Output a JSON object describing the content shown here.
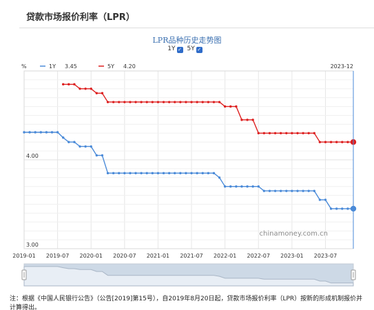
{
  "page_title": "贷款市场报价利率（LPR）",
  "chart_data": {
    "type": "line",
    "title": "LPR品种历史走势图",
    "toggles": [
      {
        "label": "1Y",
        "checked": true
      },
      {
        "label": "5Y",
        "checked": true
      }
    ],
    "ylabel": "%",
    "ylim": [
      3.0,
      5.0
    ],
    "y_tick_labels": [
      {
        "value": 4.0,
        "label": "4.00"
      },
      {
        "value": 3.0,
        "label": "3.00"
      }
    ],
    "x_tick_labels": [
      "2019-01",
      "2019-07",
      "2020-01",
      "2020-07",
      "2021-01",
      "2021-07",
      "2022-01",
      "2022-07",
      "2023-01",
      "2023-07"
    ],
    "x_tick_positions": [
      0,
      6,
      12,
      18,
      24,
      30,
      36,
      42,
      48,
      54
    ],
    "x_range": [
      0,
      59
    ],
    "cursor_label": "2023-12",
    "legend": [
      {
        "name": "1Y",
        "value": "3.45",
        "color": "#4a8ad8"
      },
      {
        "name": "5Y",
        "value": "4.20",
        "color": "#dd1f1f"
      }
    ],
    "series": [
      {
        "name": "1Y",
        "color": "#4a8ad8",
        "start_month": 0,
        "values": [
          4.31,
          4.31,
          4.31,
          4.31,
          4.31,
          4.31,
          4.31,
          4.25,
          4.2,
          4.2,
          4.15,
          4.15,
          4.15,
          4.05,
          4.05,
          3.85,
          3.85,
          3.85,
          3.85,
          3.85,
          3.85,
          3.85,
          3.85,
          3.85,
          3.85,
          3.85,
          3.85,
          3.85,
          3.85,
          3.85,
          3.85,
          3.85,
          3.85,
          3.85,
          3.85,
          3.8,
          3.7,
          3.7,
          3.7,
          3.7,
          3.7,
          3.7,
          3.7,
          3.65,
          3.65,
          3.65,
          3.65,
          3.65,
          3.65,
          3.65,
          3.65,
          3.65,
          3.65,
          3.55,
          3.55,
          3.45,
          3.45,
          3.45,
          3.45,
          3.45
        ]
      },
      {
        "name": "5Y",
        "color": "#dd1f1f",
        "start_month": 7,
        "values": [
          4.85,
          4.85,
          4.85,
          4.8,
          4.8,
          4.8,
          4.75,
          4.75,
          4.65,
          4.65,
          4.65,
          4.65,
          4.65,
          4.65,
          4.65,
          4.65,
          4.65,
          4.65,
          4.65,
          4.65,
          4.65,
          4.65,
          4.65,
          4.65,
          4.65,
          4.65,
          4.65,
          4.65,
          4.65,
          4.6,
          4.6,
          4.6,
          4.45,
          4.45,
          4.45,
          4.3,
          4.3,
          4.3,
          4.3,
          4.3,
          4.3,
          4.3,
          4.3,
          4.3,
          4.3,
          4.3,
          4.2,
          4.2,
          4.2,
          4.2,
          4.2,
          4.2,
          4.2
        ]
      }
    ],
    "watermark": "chinamoney.com.cn"
  },
  "footnote": "注：根据《中国人民银行公告》（公告[2019]第15号），自2019年8月20日起，贷款市场报价利率（LPR）按新的形成机制报价并计算得出。"
}
